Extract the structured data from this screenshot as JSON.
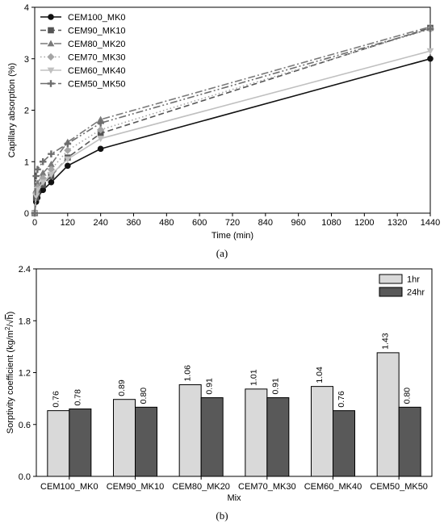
{
  "chart_data": [
    {
      "panel": "(a)",
      "type": "line",
      "xlabel": "Time (min)",
      "ylabel": "Capillary absorption (%)",
      "xlim": [
        0,
        1440
      ],
      "ylim": [
        0,
        4
      ],
      "xticks": [
        0,
        120,
        240,
        360,
        480,
        600,
        720,
        840,
        960,
        1080,
        1200,
        1320,
        1440
      ],
      "yticks": [
        0,
        1,
        2,
        3,
        4
      ],
      "legend_position": "top-left",
      "grid": false,
      "series": [
        {
          "name": "CEM100_MK0",
          "color": "#111111",
          "marker": "circle",
          "dash": "solid",
          "x": [
            0,
            5,
            10,
            30,
            60,
            120,
            240,
            1440
          ],
          "y": [
            0,
            0.22,
            0.3,
            0.45,
            0.6,
            0.92,
            1.25,
            3.0
          ]
        },
        {
          "name": "CEM90_MK10",
          "color": "#555555",
          "marker": "square",
          "dash": "dashed",
          "x": [
            0,
            5,
            10,
            30,
            60,
            120,
            240,
            1440
          ],
          "y": [
            0,
            0.3,
            0.4,
            0.55,
            0.72,
            1.08,
            1.55,
            3.6
          ]
        },
        {
          "name": "CEM80_MK20",
          "color": "#7a7a7a",
          "marker": "triangle",
          "dash": "dashdot",
          "x": [
            0,
            5,
            10,
            30,
            60,
            120,
            240,
            1440
          ],
          "y": [
            0,
            0.45,
            0.58,
            0.78,
            0.95,
            1.38,
            1.82,
            3.62
          ]
        },
        {
          "name": "CEM70_MK30",
          "color": "#a5a5a5",
          "marker": "diamond",
          "dash": "dotted",
          "x": [
            0,
            5,
            10,
            30,
            60,
            120,
            240,
            1440
          ],
          "y": [
            0,
            0.38,
            0.5,
            0.68,
            0.85,
            1.22,
            1.62,
            3.58
          ]
        },
        {
          "name": "CEM60_MK40",
          "color": "#c0c0c0",
          "marker": "triangle-down",
          "dash": "solid",
          "x": [
            0,
            5,
            10,
            30,
            60,
            120,
            240,
            1440
          ],
          "y": [
            0,
            0.33,
            0.45,
            0.6,
            0.75,
            1.05,
            1.45,
            3.15
          ]
        },
        {
          "name": "CEM50_MK50",
          "color": "#6e6e6e",
          "marker": "plus",
          "dash": "dashdotdot",
          "x": [
            0,
            5,
            10,
            30,
            60,
            120,
            240,
            1440
          ],
          "y": [
            0,
            0.72,
            0.85,
            1.0,
            1.15,
            1.35,
            1.75,
            3.58
          ]
        }
      ]
    },
    {
      "panel": "(b)",
      "type": "bar",
      "xlabel": "Mix",
      "ylabel": "Sorptivity coefficient (kg/m²/√h)",
      "ylabel_parts": {
        "main": "Sorptivity coefficient (kg/m",
        "sup": "2",
        "mid": "/",
        "root": "h",
        "end": ")"
      },
      "ylim": [
        0,
        2.4
      ],
      "yticks": [
        "0.0",
        "0.6",
        "1.2",
        "1.8",
        "2.4"
      ],
      "legend_position": "top-right",
      "grid": false,
      "categories": [
        "CEM100_MK0",
        "CEM90_MK10",
        "CEM80_MK20",
        "CEM70_MK30",
        "CEM60_MK40",
        "CEM50_MK50"
      ],
      "series": [
        {
          "name": "1hr",
          "color": "#d9d9d9",
          "values": [
            0.76,
            0.89,
            1.06,
            1.01,
            1.04,
            1.43
          ],
          "labels": [
            "0.76",
            "0.89",
            "1.06",
            "1.01",
            "1.04",
            "1.43"
          ]
        },
        {
          "name": "24hr",
          "color": "#595959",
          "values": [
            0.78,
            0.8,
            0.91,
            0.91,
            0.76,
            0.8
          ],
          "labels": [
            "0.78",
            "0.80",
            "0.91",
            "0.91",
            "0.76",
            "0.80"
          ]
        }
      ]
    }
  ]
}
